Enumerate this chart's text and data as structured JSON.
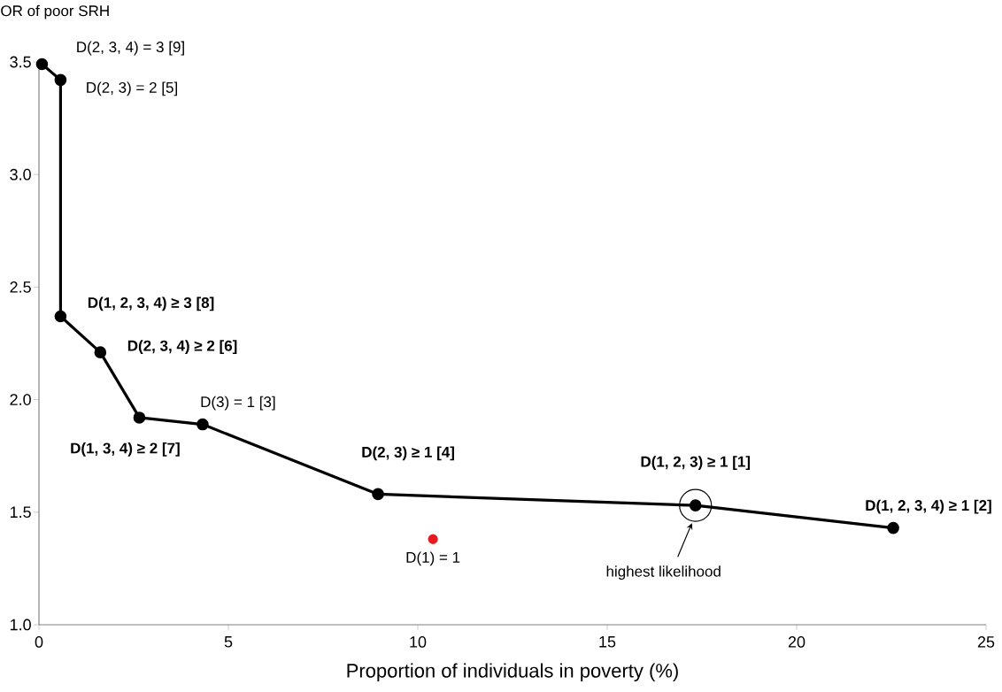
{
  "chart_data": {
    "type": "line",
    "xlabel": "Proportion of individuals in poverty (%)",
    "ylabel": "OR of poor SRH",
    "xlim": [
      0,
      25
    ],
    "ylim": [
      1,
      3.5
    ],
    "xticks": [
      0,
      5,
      10,
      15,
      20,
      25
    ],
    "yticks": [
      {
        "value": 1,
        "label": "1.0"
      },
      {
        "value": 1.5,
        "label": "1.5"
      },
      {
        "value": 2,
        "label": "2.0"
      },
      {
        "value": 2.5,
        "label": "2.5"
      },
      {
        "value": 3,
        "label": "3.0"
      },
      {
        "value": 3.5,
        "label": "3.5"
      }
    ],
    "marker": "circle",
    "line_style": "solid",
    "series": [
      {
        "color": "#000000",
        "x": [
          0.08,
          0.57,
          0.57,
          1.62,
          2.65,
          4.32,
          8.95,
          17.33,
          22.55
        ],
        "values": [
          3.49,
          3.42,
          2.37,
          2.21,
          1.92,
          1.89,
          1.58,
          1.53,
          1.43
        ]
      },
      {
        "type": "scatter",
        "color": "#e41a1c",
        "x": [
          10.4
        ],
        "values": [
          1.38
        ]
      }
    ],
    "annotations": [
      {
        "text": "D(2, 3, 4) = 3 [9]",
        "x": 0.08,
        "y": 3.49
      },
      {
        "text": "D(2, 3) = 2 [5]",
        "x": 0.57,
        "y": 3.42
      },
      {
        "text": "D(1, 2, 3, 4) ≥ 3 [8]",
        "x": 0.57,
        "y": 2.37
      },
      {
        "text": "D(2, 3, 4) ≥ 2 [6]",
        "x": 1.62,
        "y": 2.21
      },
      {
        "text": "D(1, 3, 4) ≥ 2 [7]",
        "x": 2.65,
        "y": 1.92
      },
      {
        "text": "D(3) = 1 [3]",
        "x": 4.32,
        "y": 1.89
      },
      {
        "text": "D(2, 3) ≥ 1 [4]",
        "x": 8.95,
        "y": 1.58
      },
      {
        "text": "D(1, 2, 3) ≥ 1 [1]",
        "x": 17.33,
        "y": 1.53
      },
      {
        "text": "D(1, 2, 3, 4) ≥ 1 [2]",
        "x": 22.55,
        "y": 1.43
      },
      {
        "text": "D(1) = 1",
        "x": 10.4,
        "y": 1.38
      },
      "highest likelihood"
    ]
  }
}
